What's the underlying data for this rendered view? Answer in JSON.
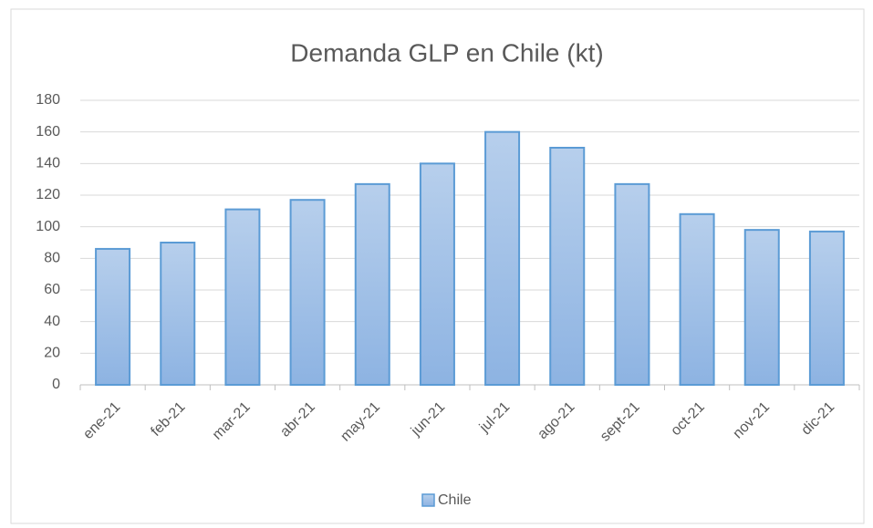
{
  "chart_data": {
    "type": "bar",
    "title": "Demanda GLP en Chile (kt)",
    "categories": [
      "ene-21",
      "feb-21",
      "mar-21",
      "abr-21",
      "may-21",
      "jun-21",
      "jul-21",
      "ago-21",
      "sept-21",
      "oct-21",
      "nov-21",
      "dic-21"
    ],
    "series": [
      {
        "name": "Chile",
        "color": "#5b9bd5",
        "values": [
          86,
          90,
          111,
          117,
          127,
          140,
          160,
          150,
          127,
          108,
          98,
          97
        ]
      }
    ],
    "ylim": [
      0,
      180
    ],
    "yticks": [
      0,
      20,
      40,
      60,
      80,
      100,
      120,
      140,
      160,
      180
    ],
    "grid": true,
    "legend": "bottom"
  }
}
